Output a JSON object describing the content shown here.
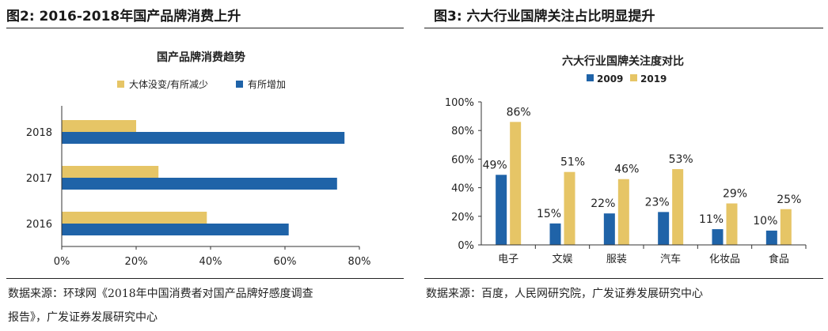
{
  "left_panel": {
    "heading": "图2: 2016-2018年国产品牌消费上升",
    "source_line1": "数据来源：环球网《2018年中国消费者对国产品牌好感度调查",
    "source_line2": "报告》，广发证券发展研究中心"
  },
  "right_panel": {
    "heading": "图3:  六大行业国牌关注占比明显提升",
    "source": "数据来源：百度，人民网研究院，广发证券发展研究中心"
  },
  "chart_data": [
    {
      "type": "bar",
      "orientation": "horizontal",
      "title": "国产品牌消费趋势",
      "categories": [
        "2018",
        "2017",
        "2016"
      ],
      "series": [
        {
          "name": "大体没变/有所减少",
          "color": "#E6C566",
          "values": [
            0.2,
            0.26,
            0.39
          ]
        },
        {
          "name": "有所增加",
          "color": "#1F63A8",
          "values": [
            0.76,
            0.74,
            0.61
          ]
        }
      ],
      "xlim": [
        0,
        0.8
      ],
      "xticks": [
        "0%",
        "20%",
        "40%",
        "60%",
        "80%"
      ],
      "legend": "top",
      "grid": false
    },
    {
      "type": "bar",
      "orientation": "vertical",
      "title": "六大行业国牌关注度对比",
      "categories": [
        "电子",
        "文娱",
        "服装",
        "汽车",
        "化妆品",
        "食品"
      ],
      "series": [
        {
          "name": "2009",
          "color": "#1F63A8",
          "values": [
            0.49,
            0.15,
            0.22,
            0.23,
            0.11,
            0.1
          ],
          "labels": [
            "49%",
            "15%",
            "22%",
            "23%",
            "11%",
            "10%"
          ]
        },
        {
          "name": "2019",
          "color": "#E6C566",
          "values": [
            0.86,
            0.51,
            0.46,
            0.53,
            0.29,
            0.25
          ],
          "labels": [
            "86%",
            "51%",
            "46%",
            "53%",
            "29%",
            "25%"
          ]
        }
      ],
      "ylim": [
        0,
        1.0
      ],
      "yticks": [
        "0%",
        "20%",
        "40%",
        "60%",
        "80%",
        "100%"
      ],
      "legend": "top",
      "grid": false
    }
  ]
}
